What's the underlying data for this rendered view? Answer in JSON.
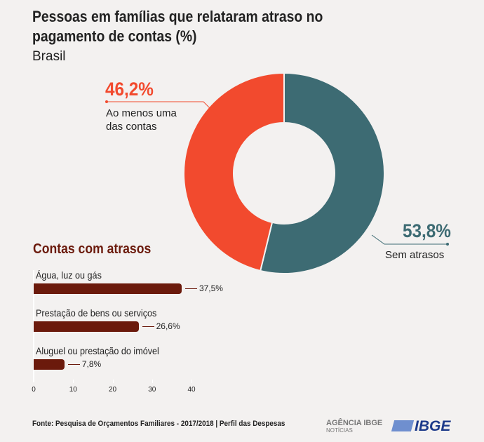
{
  "chart_data": [
    {
      "type": "pie",
      "title": "Pessoas em famílias que relataram atraso no pagamento de contas (%)",
      "subtitle": "Brasil",
      "slices": [
        {
          "label": "Sem atrasos",
          "value": 53.8,
          "display": "53,8%",
          "color": "#3d6b73"
        },
        {
          "label": "Ao menos uma das contas",
          "value": 46.2,
          "display": "46,2%",
          "color": "#f24a2e"
        }
      ]
    },
    {
      "type": "bar",
      "orientation": "horizontal",
      "title": "Contas com atrasos",
      "categories": [
        "Água, luz ou gás",
        "Prestação de bens ou serviços",
        "Aluguel ou prestação do imóvel"
      ],
      "values": [
        37.5,
        26.6,
        7.8
      ],
      "labels": [
        "37,5%",
        "26,6%",
        "7,8%"
      ],
      "xlim": [
        0,
        40
      ],
      "ticks": [
        "0",
        "10",
        "20",
        "30",
        "40"
      ],
      "color": "#6b1a0c"
    }
  ],
  "footer": {
    "source": "Fonte: Pesquisa de Orçamentos Familiares - 2017/2018 | Perfil das Despesas",
    "agencia": "AGÊNCIA IBGE",
    "noticias": "NOTÍCIAS",
    "ibge": "IBGE"
  }
}
